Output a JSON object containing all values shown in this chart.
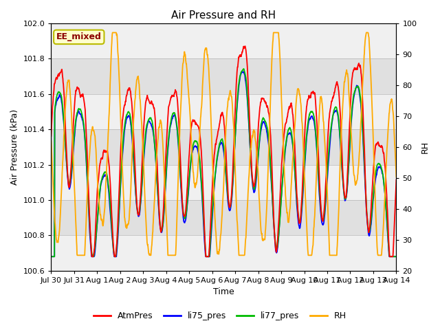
{
  "title": "Air Pressure and RH",
  "xlabel": "Time",
  "ylabel_left": "Air Pressure (kPa)",
  "ylabel_right": "RH",
  "ylim_left": [
    100.6,
    102.0
  ],
  "ylim_right": [
    20,
    100
  ],
  "yticks_left": [
    100.6,
    100.8,
    101.0,
    101.2,
    101.4,
    101.6,
    101.8,
    102.0
  ],
  "yticks_right": [
    20,
    30,
    40,
    50,
    60,
    70,
    80,
    90,
    100
  ],
  "xtick_labels": [
    "Jul 30",
    "Jul 31",
    "Aug 1",
    "Aug 2",
    "Aug 3",
    "Aug 4",
    "Aug 5",
    "Aug 6",
    "Aug 7",
    "Aug 8",
    "Aug 9",
    "Aug 10",
    "Aug 11",
    "Aug 12",
    "Aug 13",
    "Aug 14"
  ],
  "n_ticks": 16,
  "colors": {
    "AtmPres": "#ff0000",
    "li75_pres": "#0000ff",
    "li77_pres": "#00bb00",
    "RH": "#ffaa00"
  },
  "annotation_text": "EE_mixed",
  "annotation_color": "#8b0000",
  "annotation_bg": "#ffffcc",
  "annotation_border": "#bbbb00",
  "bg_dark": "#e0e0e0",
  "bg_light": "#f8f8f8",
  "title_fontsize": 11,
  "label_fontsize": 9,
  "tick_fontsize": 8,
  "legend_fontsize": 9
}
